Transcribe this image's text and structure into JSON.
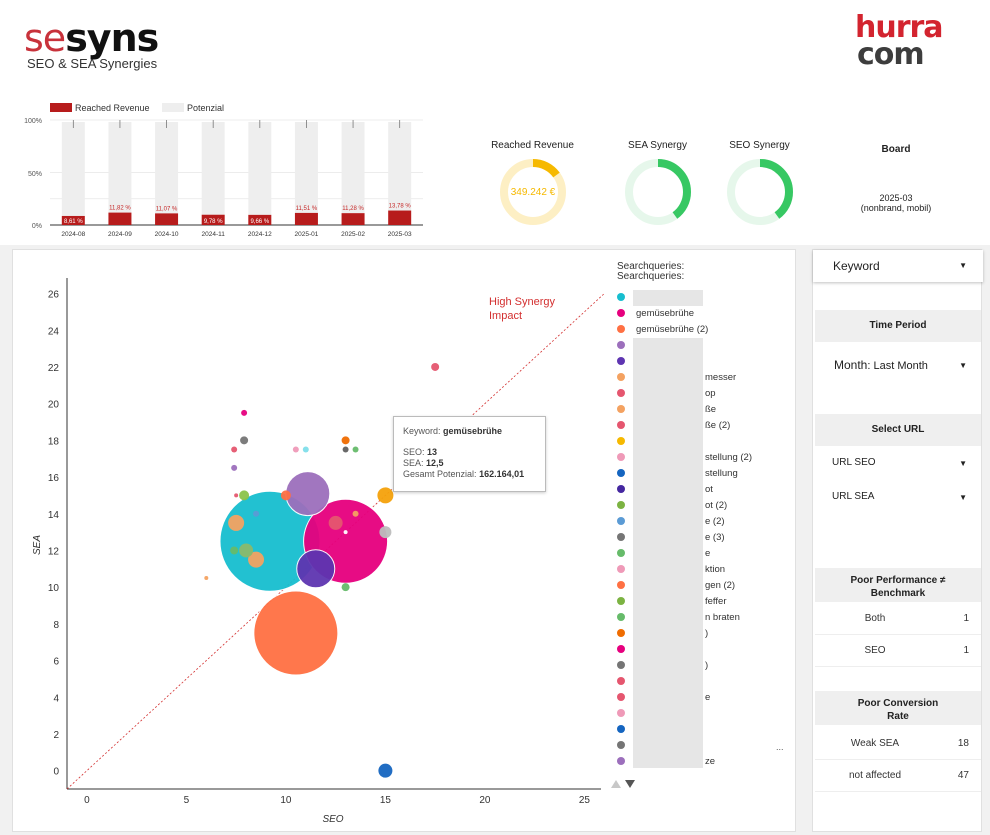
{
  "brand": {
    "logo_se": "se",
    "logo_syns": "syns",
    "subtitle": "SEO & SEA Synergies",
    "partner_line1": "hurra",
    "partner_line2": "com"
  },
  "bar_chart": {
    "legend": [
      "Reached Revenue",
      "Potenzial"
    ],
    "y_ticks": [
      "100%",
      "50%",
      "0%"
    ],
    "colors": {
      "reached": "#b71c1c",
      "potential": "#eeeeee"
    }
  },
  "kpis": {
    "reached_revenue": {
      "title": "Reached Revenue",
      "value": "349.242 €",
      "fraction": 0.15,
      "color": "#f6b900",
      "track": "#fdefc4"
    },
    "sea_synergy": {
      "title": "SEA Synergy",
      "fraction": 0.4,
      "color": "#37c863",
      "track": "#e6f7eb"
    },
    "seo_synergy": {
      "title": "SEO Synergy",
      "fraction": 0.4,
      "color": "#37c863",
      "track": "#e6f7eb"
    },
    "board": {
      "title": "Board",
      "period": "2025-03",
      "segment": "(nonbrand, mobil)"
    }
  },
  "scatter": {
    "annotation_line1": "High Synergy",
    "annotation_line2": "Impact",
    "legend_title": "Searchqueries:",
    "legend_items": [
      "",
      "gemüsebrühe",
      "gemüsebrühe (2)",
      "",
      "",
      "messer",
      "op",
      "ße",
      "ße (2)",
      "",
      "stellung (2)",
      "stellung",
      "ot",
      "ot (2)",
      "e (2)",
      "e (3)",
      "e",
      "ktion",
      "gen (2)",
      "feffer",
      "n braten",
      ")",
      "",
      ")",
      "",
      "e",
      "",
      "",
      "",
      "ze"
    ],
    "legend_colors": [
      "#17becf",
      "#e6007e",
      "#ff7043",
      "#9c6fbc",
      "#5e35b1",
      "#f4a261",
      "#e5566f",
      "#f4a261",
      "#e5566f",
      "#f6b900",
      "#ef9ab8",
      "#1565c0",
      "#4527a0",
      "#7cb342",
      "#5b9bd5",
      "#757575",
      "#66bb6a",
      "#ef9ab8",
      "#ff7043",
      "#7cb342",
      "#66bb6a",
      "#ef6c00",
      "#e6007e",
      "#757575",
      "#e5566f",
      "#e5566f",
      "#ef9ab8",
      "#1565c0",
      "#757575",
      "#9c6fbc"
    ],
    "legend_more": "...",
    "tooltip": {
      "keyword_label": "Keyword:",
      "keyword": "gemüsebrühe",
      "seo_label": "SEO:",
      "seo": "13",
      "sea_label": "SEA:",
      "sea": "12,5",
      "pot_label": "Gesamt Potenzial:",
      "pot": "162.164,01"
    }
  },
  "chart_data": [
    {
      "type": "bar",
      "stacked": true,
      "categories": [
        "2024-08",
        "2024-09",
        "2024-10",
        "2024-11",
        "2024-12",
        "2025-01",
        "2025-02",
        "2025-03"
      ],
      "series": [
        {
          "name": "Reached Revenue",
          "values": [
            8.61,
            11.82,
            11.07,
            9.78,
            9.66,
            11.51,
            11.28,
            13.78
          ]
        },
        {
          "name": "Potenzial",
          "values": [
            91.39,
            88.18,
            88.93,
            90.22,
            90.34,
            88.49,
            88.72,
            86.22
          ]
        }
      ],
      "data_labels": [
        "8,61 %",
        "11,82 %",
        "11,07 %",
        "9,78 %",
        "9,66 %",
        "11,51 %",
        "11,28 %",
        "13,78 %"
      ],
      "ylim": [
        0,
        100
      ],
      "legend": "top-left"
    },
    {
      "type": "scatter",
      "xlabel": "SEO",
      "ylabel": "SEA",
      "xlim": [
        -1,
        26
      ],
      "ylim": [
        -1,
        27
      ],
      "x_ticks": [
        0,
        5,
        10,
        15,
        20,
        25
      ],
      "y_ticks": [
        0,
        2,
        4,
        6,
        8,
        10,
        12,
        14,
        16,
        18,
        20,
        22,
        24,
        26
      ],
      "reference_line": "y = x",
      "points": [
        {
          "x": 9.2,
          "y": 12.5,
          "r": 50,
          "color": "#17becf"
        },
        {
          "x": 10.5,
          "y": 7.5,
          "r": 42,
          "color": "#ff7043"
        },
        {
          "x": 13,
          "y": 12.5,
          "r": 42,
          "color": "#e6007e"
        },
        {
          "x": 11.1,
          "y": 15.1,
          "r": 22,
          "color": "#9c6fbc"
        },
        {
          "x": 11.5,
          "y": 11.0,
          "r": 19,
          "color": "#5e35b1"
        },
        {
          "x": 15,
          "y": 15.0,
          "r": 8,
          "color": "#f4a10b"
        },
        {
          "x": 15,
          "y": 13.0,
          "r": 6,
          "color": "#bdbdbd"
        },
        {
          "x": 15,
          "y": 0.0,
          "r": 7,
          "color": "#1565c0"
        },
        {
          "x": 17.5,
          "y": 22.0,
          "r": 4,
          "color": "#e5566f"
        },
        {
          "x": 7.5,
          "y": 13.5,
          "r": 8,
          "color": "#f4a261"
        },
        {
          "x": 8.5,
          "y": 11.5,
          "r": 8,
          "color": "#f4a261"
        },
        {
          "x": 8.0,
          "y": 12.0,
          "r": 7,
          "color": "#8bb96b"
        },
        {
          "x": 7.9,
          "y": 18.0,
          "r": 4,
          "color": "#757575"
        },
        {
          "x": 7.9,
          "y": 19.5,
          "r": 3,
          "color": "#e6007e"
        },
        {
          "x": 7.4,
          "y": 17.5,
          "r": 3,
          "color": "#e5566f"
        },
        {
          "x": 7.4,
          "y": 16.5,
          "r": 3,
          "color": "#9c6fbc"
        },
        {
          "x": 7.9,
          "y": 15.0,
          "r": 5,
          "color": "#8bc34a"
        },
        {
          "x": 7.4,
          "y": 12.0,
          "r": 4,
          "color": "#66bb6a"
        },
        {
          "x": 7.5,
          "y": 15.0,
          "r": 2,
          "color": "#e5566f"
        },
        {
          "x": 10.5,
          "y": 17.5,
          "r": 3,
          "color": "#ef9ab8"
        },
        {
          "x": 11.0,
          "y": 17.5,
          "r": 3,
          "color": "#80deea"
        },
        {
          "x": 13.0,
          "y": 18.0,
          "r": 4,
          "color": "#ef6c00"
        },
        {
          "x": 13.0,
          "y": 17.5,
          "r": 3,
          "color": "#616161"
        },
        {
          "x": 13.5,
          "y": 17.5,
          "r": 3,
          "color": "#66bb6a"
        },
        {
          "x": 10.0,
          "y": 15.0,
          "r": 5,
          "color": "#ff7043"
        },
        {
          "x": 12.5,
          "y": 13.5,
          "r": 7,
          "color": "#e5566f"
        },
        {
          "x": 13.5,
          "y": 14.0,
          "r": 3,
          "color": "#f4a261"
        },
        {
          "x": 13.0,
          "y": 13.0,
          "r": 2,
          "color": "#ffffff"
        },
        {
          "x": 13.0,
          "y": 10.0,
          "r": 4,
          "color": "#66bb6a"
        },
        {
          "x": 6.0,
          "y": 10.5,
          "r": 2,
          "color": "#f4a261"
        },
        {
          "x": 8.5,
          "y": 14.0,
          "r": 3,
          "color": "#5b9bd5"
        }
      ]
    }
  ],
  "filters": {
    "keyword": "Keyword",
    "time_period_header": "Time Period",
    "month_label": "Month",
    "month_value": ": Last Month",
    "select_url_header": "Select URL",
    "url_seo": "URL SEO",
    "url_sea": "URL SEA",
    "poor_perf_header_1": "Poor Performance ≠",
    "poor_perf_header_2": "Benchmark",
    "poor_perf_rows": [
      {
        "label": "Both",
        "value": "1"
      },
      {
        "label": "SEO",
        "value": "1"
      }
    ],
    "poor_conv_header_1": "Poor Conversion",
    "poor_conv_header_2": "Rate",
    "poor_conv_rows": [
      {
        "label": "Weak SEA",
        "value": "18"
      },
      {
        "label": "not affected",
        "value": "47"
      }
    ]
  }
}
